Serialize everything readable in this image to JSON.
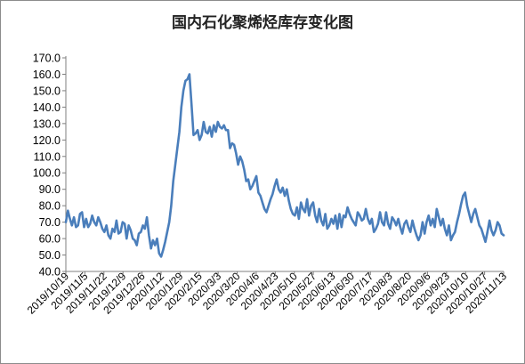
{
  "chart_data": {
    "type": "line",
    "title": "国内石化聚烯烃库存变化图",
    "xlabel": "",
    "ylabel": "",
    "ylim": [
      40,
      170
    ],
    "yticks": [
      "170.0",
      "160.0",
      "150.0",
      "140.0",
      "130.0",
      "120.0",
      "110.0",
      "100.0",
      "90.0",
      "80.0",
      "70.0",
      "60.0",
      "50.0",
      "40.0"
    ],
    "xticks": [
      "2019/10/19",
      "2019/11/5",
      "2019/11/22",
      "2019/12/9",
      "2019/12/26",
      "2020/1/12",
      "2020/1/29",
      "2020/2/15",
      "2020/3/3",
      "2020/3/20",
      "2020/4/6",
      "2020/4/23",
      "2020/5/10",
      "2020/5/27",
      "2020/6/13",
      "2020/6/30",
      "2020/7/17",
      "2020/8/3",
      "2020/8/20",
      "2020/9/6",
      "2020/9/23",
      "2020/10/10",
      "2020/10/27",
      "2020/11/13"
    ],
    "grid": false,
    "line_color": "#4a7ebb",
    "series": [
      {
        "name": "",
        "values": [
          70,
          77,
          72,
          68,
          73,
          67,
          68,
          75,
          76,
          67,
          72,
          67,
          69,
          74,
          70,
          68,
          73,
          70,
          66,
          64,
          68,
          62,
          60,
          66,
          64,
          71,
          63,
          64,
          70,
          69,
          60,
          68,
          65,
          60,
          59,
          56,
          63,
          64,
          68,
          66,
          73,
          62,
          54,
          59,
          56,
          60,
          51,
          49,
          53,
          58,
          64,
          70,
          80,
          95,
          105,
          115,
          125,
          140,
          150,
          156,
          157,
          160,
          142,
          123,
          124,
          126,
          120,
          123,
          131,
          125,
          124,
          128,
          122,
          129,
          125,
          131,
          128,
          127,
          129,
          126,
          126,
          115,
          118,
          117,
          112,
          105,
          110,
          107,
          102,
          95,
          96,
          90,
          92,
          95,
          98,
          88,
          86,
          82,
          78,
          76,
          80,
          84,
          87,
          92,
          96,
          90,
          88,
          91,
          86,
          90,
          83,
          78,
          75,
          74,
          79,
          72,
          82,
          78,
          76,
          84,
          74,
          80,
          82,
          74,
          70,
          78,
          71,
          68,
          75,
          66,
          68,
          72,
          69,
          74,
          66,
          75,
          67,
          74,
          73,
          79,
          75,
          72,
          70,
          68,
          76,
          74,
          71,
          72,
          78,
          72,
          69,
          72,
          64,
          66,
          69,
          76,
          70,
          68,
          76,
          69,
          66,
          73,
          71,
          68,
          72,
          67,
          63,
          69,
          71,
          67,
          64,
          71,
          66,
          62,
          59,
          62,
          70,
          63,
          70,
          74,
          68,
          72,
          67,
          78,
          73,
          68,
          72,
          66,
          62,
          68,
          59,
          62,
          64,
          70,
          75,
          81,
          86,
          88,
          80,
          75,
          70,
          75,
          78,
          73,
          68,
          66,
          62,
          58,
          64,
          71,
          65,
          62,
          65,
          70,
          68,
          63,
          62
        ]
      }
    ]
  }
}
